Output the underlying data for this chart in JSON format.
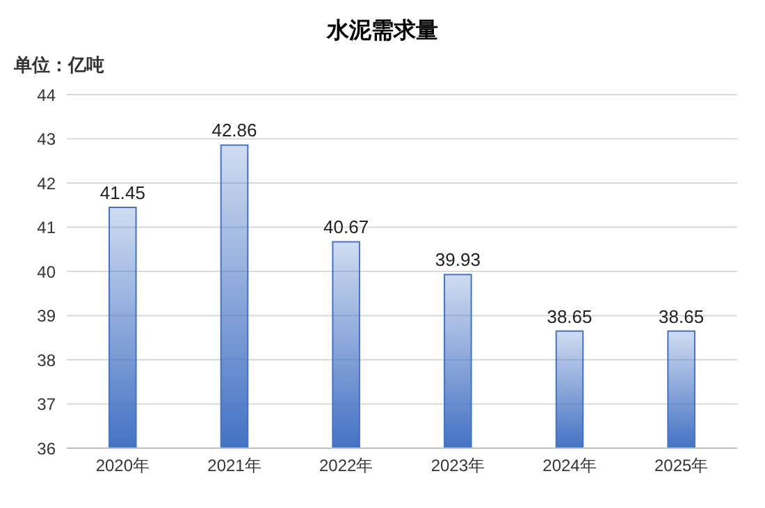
{
  "chart_data": {
    "type": "bar",
    "title": "水泥需求量",
    "ylabel": "单位：亿吨",
    "categories": [
      "2020年",
      "2021年",
      "2022年",
      "2023年",
      "2024年",
      "2025年"
    ],
    "values": [
      41.45,
      42.86,
      40.67,
      39.93,
      38.65,
      38.65
    ],
    "color": "#4472c4",
    "ylim": [
      36,
      44
    ],
    "yticks": [
      36,
      37,
      38,
      39,
      40,
      41,
      42,
      43,
      44
    ],
    "grid": "y",
    "data_labels": true
  }
}
